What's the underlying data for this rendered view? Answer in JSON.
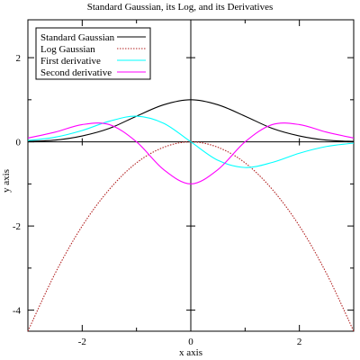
{
  "chart_data": {
    "type": "line",
    "title": "Standard Gaussian, its Log, and its Derivatives",
    "xlabel": "x axis",
    "ylabel": "y axis",
    "xlim": [
      -3,
      3
    ],
    "ylim": [
      -4.5,
      2.9
    ],
    "xticks": [
      -2,
      0,
      2
    ],
    "xtick_labels": [
      "-2",
      "0",
      "2"
    ],
    "yticks": [
      -4,
      -2,
      0,
      2
    ],
    "ytick_labels": [
      "-4",
      "-2",
      "0",
      "2"
    ],
    "grid": false,
    "zero_axes": true,
    "legend_position": "top-left",
    "series": [
      {
        "name": "Standard Gaussian",
        "color": "#000000",
        "dash": "solid",
        "x": [
          -3,
          -2.5,
          -2,
          -1.5,
          -1,
          -0.5,
          0,
          0.5,
          1,
          1.5,
          2,
          2.5,
          3
        ],
        "values": [
          0.01,
          0.04,
          0.14,
          0.32,
          0.61,
          0.88,
          1.0,
          0.88,
          0.61,
          0.32,
          0.14,
          0.04,
          0.01
        ]
      },
      {
        "name": "Log Gaussian",
        "color": "#b22222",
        "dash": "dotted",
        "x": [
          -3,
          -2.5,
          -2,
          -1.5,
          -1,
          -0.5,
          0,
          0.5,
          1,
          1.5,
          2,
          2.5,
          3
        ],
        "values": [
          -4.5,
          -3.13,
          -2.0,
          -1.13,
          -0.5,
          -0.13,
          0,
          -0.13,
          -0.5,
          -1.13,
          -2.0,
          -3.13,
          -4.5
        ]
      },
      {
        "name": "First derivative",
        "color": "#00ffff",
        "dash": "solid",
        "x": [
          -3,
          -2.5,
          -2,
          -1.5,
          -1,
          -0.5,
          0,
          0.5,
          1,
          1.5,
          2,
          2.5,
          3
        ],
        "values": [
          0.03,
          0.11,
          0.27,
          0.49,
          0.61,
          0.44,
          0,
          -0.44,
          -0.61,
          -0.49,
          -0.27,
          -0.11,
          -0.03
        ]
      },
      {
        "name": "Second derivative",
        "color": "#ff00ff",
        "dash": "solid",
        "x": [
          -3,
          -2.5,
          -2,
          -1.5,
          -1,
          -0.5,
          0,
          0.5,
          1,
          1.5,
          2,
          2.5,
          3
        ],
        "values": [
          0.09,
          0.23,
          0.41,
          0.41,
          0,
          -0.66,
          -1.0,
          -0.66,
          0,
          0.41,
          0.41,
          0.23,
          0.09
        ]
      }
    ]
  }
}
